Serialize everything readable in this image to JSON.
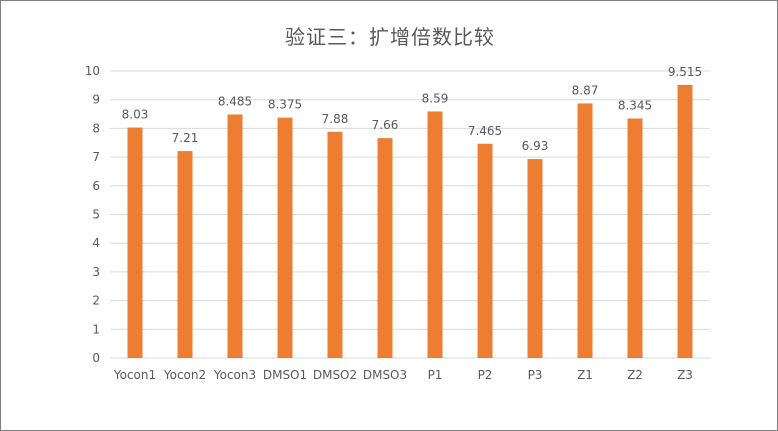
{
  "chart_data": {
    "type": "bar",
    "title": "验证三：扩增倍数比较",
    "xlabel": "",
    "ylabel": "",
    "categories": [
      "Yocon1",
      "Yocon2",
      "Yocon3",
      "DMSO1",
      "DMSO2",
      "DMSO3",
      "P1",
      "P2",
      "P3",
      "Z1",
      "Z2",
      "Z3"
    ],
    "values": [
      8.03,
      7.21,
      8.485,
      8.375,
      7.88,
      7.66,
      8.59,
      7.465,
      6.93,
      8.87,
      8.345,
      9.515
    ],
    "data_labels": [
      "8.03",
      "7.21",
      "8.485",
      "8.375",
      "7.88",
      "7.66",
      "8.59",
      "7.465",
      "6.93",
      "8.87",
      "8.345",
      "9.515"
    ],
    "yticks": [
      "0",
      "1",
      "2",
      "3",
      "4",
      "5",
      "6",
      "7",
      "8",
      "9",
      "10"
    ],
    "ylim": [
      0,
      10
    ],
    "grid": true,
    "legend": "none",
    "bar_color": "#ED7D31",
    "grid_color": "#D9D9D9",
    "text_color": "#595959"
  }
}
